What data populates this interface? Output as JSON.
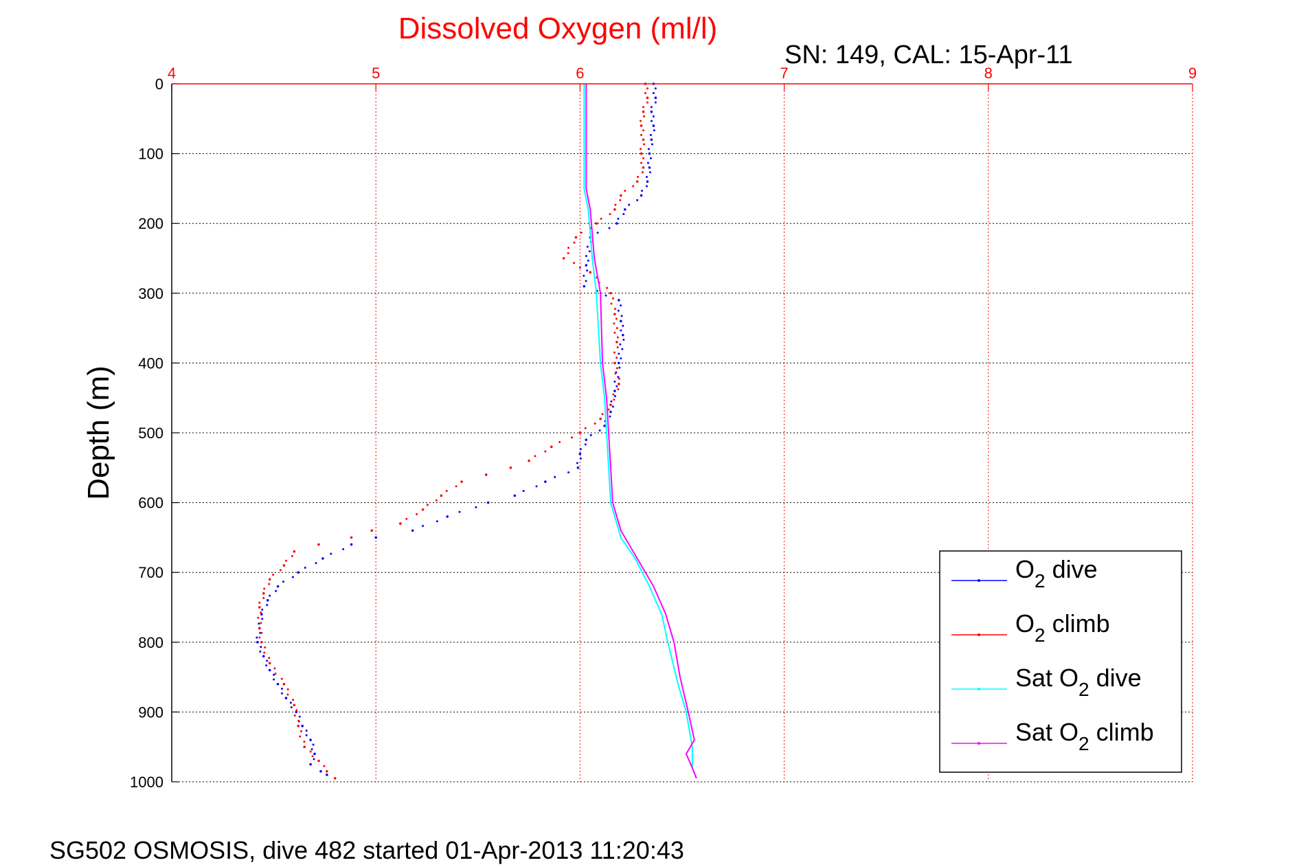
{
  "chart_data": {
    "type": "scatter",
    "title": "Dissolved Oxygen (ml/l)",
    "subtitle": "SN: 149, CAL: 15-Apr-11",
    "ylabel": "Depth (m)",
    "xlabel": "",
    "caption": "SG502 OSMOSIS, dive 482 started 01-Apr-2013 11:20:43",
    "xlim": [
      4,
      9
    ],
    "ylim": [
      0,
      1000
    ],
    "y_reversed": true,
    "x_axis_position": "top",
    "grid": true,
    "legend_position": "bottom-right",
    "colors": {
      "title": "#ff0000",
      "x_ticks": "#ff0000",
      "y_ticks": "#000000",
      "grid": "#000000",
      "x_grid": "#ff0000"
    },
    "x_ticks": [
      "4",
      "5",
      "6",
      "7",
      "8",
      "9"
    ],
    "y_ticks": [
      "0",
      "100",
      "200",
      "300",
      "400",
      "500",
      "600",
      "700",
      "800",
      "900",
      "1000"
    ],
    "series": [
      {
        "legend_main": "O",
        "legend_sub": "2",
        "legend_tail": " dive",
        "color": "#0000ff",
        "style": "dots",
        "points": [
          [
            6.36,
            0
          ],
          [
            6.37,
            20
          ],
          [
            6.35,
            40
          ],
          [
            6.36,
            60
          ],
          [
            6.35,
            80
          ],
          [
            6.34,
            100
          ],
          [
            6.34,
            120
          ],
          [
            6.33,
            140
          ],
          [
            6.3,
            160
          ],
          [
            6.22,
            180
          ],
          [
            6.18,
            200
          ],
          [
            6.05,
            220
          ],
          [
            6.03,
            260
          ],
          [
            6.02,
            290
          ],
          [
            6.19,
            310
          ],
          [
            6.2,
            340
          ],
          [
            6.21,
            360
          ],
          [
            6.19,
            400
          ],
          [
            6.17,
            440
          ],
          [
            6.15,
            470
          ],
          [
            6.12,
            490
          ],
          [
            6.03,
            510
          ],
          [
            6.0,
            530
          ],
          [
            5.99,
            550
          ],
          [
            5.83,
            570
          ],
          [
            5.68,
            590
          ],
          [
            5.55,
            600
          ],
          [
            5.35,
            620
          ],
          [
            5.18,
            640
          ],
          [
            5.0,
            650
          ],
          [
            4.88,
            660
          ],
          [
            4.74,
            680
          ],
          [
            4.62,
            700
          ],
          [
            4.52,
            720
          ],
          [
            4.47,
            740
          ],
          [
            4.44,
            760
          ],
          [
            4.43,
            780
          ],
          [
            4.42,
            800
          ],
          [
            4.45,
            820
          ],
          [
            4.48,
            840
          ],
          [
            4.52,
            860
          ],
          [
            4.56,
            880
          ],
          [
            4.61,
            900
          ],
          [
            4.64,
            920
          ],
          [
            4.68,
            940
          ],
          [
            4.7,
            960
          ],
          [
            4.68,
            975
          ],
          [
            4.73,
            985
          ],
          [
            4.76,
            990
          ]
        ]
      },
      {
        "legend_main": "O",
        "legend_sub": "2",
        "legend_tail": " climb",
        "color": "#ff0000",
        "style": "dots",
        "points": [
          [
            6.32,
            0
          ],
          [
            6.33,
            20
          ],
          [
            6.31,
            40
          ],
          [
            6.3,
            60
          ],
          [
            6.31,
            80
          ],
          [
            6.3,
            100
          ],
          [
            6.31,
            120
          ],
          [
            6.28,
            140
          ],
          [
            6.2,
            160
          ],
          [
            6.17,
            180
          ],
          [
            6.08,
            200
          ],
          [
            5.98,
            220
          ],
          [
            5.92,
            250
          ],
          [
            6.05,
            270
          ],
          [
            6.15,
            300
          ],
          [
            6.17,
            330
          ],
          [
            6.18,
            370
          ],
          [
            6.17,
            400
          ],
          [
            6.19,
            430
          ],
          [
            6.15,
            460
          ],
          [
            6.1,
            480
          ],
          [
            6.0,
            500
          ],
          [
            5.86,
            520
          ],
          [
            5.75,
            540
          ],
          [
            5.66,
            550
          ],
          [
            5.54,
            560
          ],
          [
            5.42,
            570
          ],
          [
            5.32,
            590
          ],
          [
            5.23,
            610
          ],
          [
            5.12,
            630
          ],
          [
            4.98,
            640
          ],
          [
            4.88,
            650
          ],
          [
            4.72,
            660
          ],
          [
            4.6,
            670
          ],
          [
            4.55,
            690
          ],
          [
            4.48,
            710
          ],
          [
            4.45,
            730
          ],
          [
            4.43,
            750
          ],
          [
            4.43,
            780
          ],
          [
            4.44,
            800
          ],
          [
            4.48,
            830
          ],
          [
            4.55,
            860
          ],
          [
            4.6,
            890
          ],
          [
            4.62,
            920
          ],
          [
            4.65,
            950
          ],
          [
            4.72,
            970
          ],
          [
            4.76,
            985
          ],
          [
            4.8,
            995
          ]
        ]
      },
      {
        "legend_main": "Sat O",
        "legend_sub": "2",
        "legend_tail": " dive",
        "color": "#00ffff",
        "style": "line",
        "points": [
          [
            6.02,
            0
          ],
          [
            6.02,
            150
          ],
          [
            6.04,
            180
          ],
          [
            6.06,
            250
          ],
          [
            6.08,
            300
          ],
          [
            6.1,
            400
          ],
          [
            6.12,
            450
          ],
          [
            6.13,
            500
          ],
          [
            6.15,
            600
          ],
          [
            6.2,
            650
          ],
          [
            6.27,
            680
          ],
          [
            6.34,
            720
          ],
          [
            6.4,
            760
          ],
          [
            6.43,
            800
          ],
          [
            6.48,
            860
          ],
          [
            6.52,
            900
          ],
          [
            6.55,
            950
          ],
          [
            6.55,
            960
          ],
          [
            6.55,
            980
          ],
          [
            6.57,
            995
          ]
        ]
      },
      {
        "legend_main": "Sat O",
        "legend_sub": "2",
        "legend_tail": " climb",
        "color": "#ff00ff",
        "style": "line",
        "points": [
          [
            6.03,
            0
          ],
          [
            6.03,
            150
          ],
          [
            6.05,
            180
          ],
          [
            6.07,
            250
          ],
          [
            6.1,
            300
          ],
          [
            6.11,
            400
          ],
          [
            6.13,
            450
          ],
          [
            6.14,
            500
          ],
          [
            6.16,
            600
          ],
          [
            6.2,
            640
          ],
          [
            6.28,
            680
          ],
          [
            6.36,
            720
          ],
          [
            6.42,
            760
          ],
          [
            6.46,
            800
          ],
          [
            6.49,
            850
          ],
          [
            6.53,
            900
          ],
          [
            6.56,
            940
          ],
          [
            6.52,
            960
          ],
          [
            6.55,
            980
          ],
          [
            6.57,
            995
          ]
        ]
      }
    ]
  }
}
